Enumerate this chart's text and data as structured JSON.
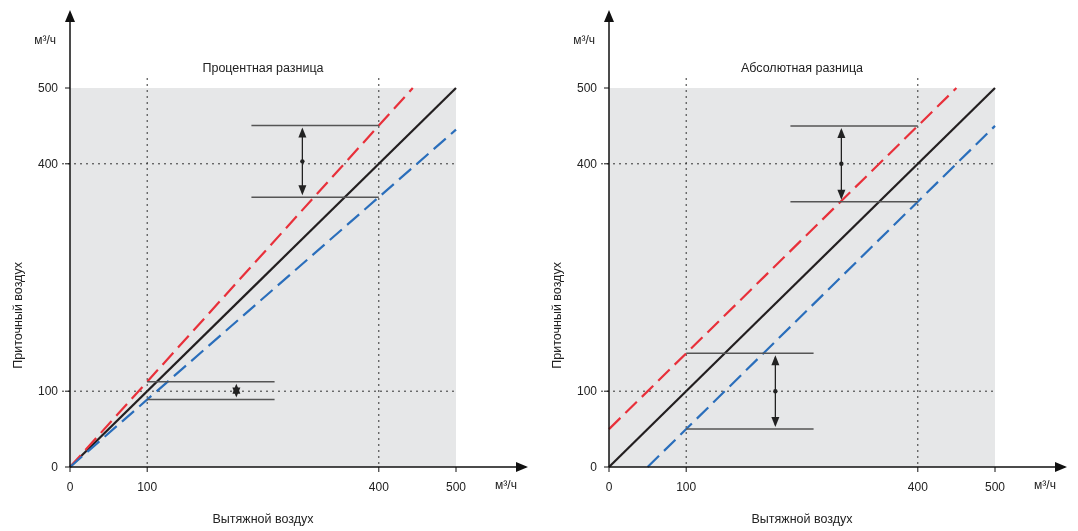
{
  "chart_data": [
    {
      "type": "line",
      "title": "Процентная разница",
      "xlabel": "Вытяжной воздух",
      "ylabel": "Приточный воздух",
      "annotations": [
        "м³/ч",
        "м³/ч"
      ],
      "xlim": [
        0,
        500
      ],
      "ylim": [
        0,
        500
      ],
      "xticks": [
        0,
        100,
        400,
        500
      ],
      "yticks": [
        0,
        100,
        400,
        500
      ],
      "grid": true,
      "series": [
        {
          "color": "#231f20",
          "line_style": "solid",
          "x": [
            0,
            500
          ],
          "values": [
            0,
            500
          ]
        },
        {
          "color": "#e8303a",
          "line_style": "dashed",
          "x": [
            0,
            444
          ],
          "values": [
            0,
            500
          ]
        },
        {
          "color": "#2a6ebb",
          "line_style": "dashed",
          "x": [
            0,
            500
          ],
          "values": [
            0,
            445
          ]
        }
      ]
    },
    {
      "type": "line",
      "title": "Абсолютная разница",
      "xlabel": "Вытяжной воздух",
      "ylabel": "Приточный воздух",
      "annotations": [
        "м³/ч",
        "м³/ч"
      ],
      "xlim": [
        0,
        500
      ],
      "ylim": [
        0,
        500
      ],
      "xticks": [
        0,
        100,
        400,
        500
      ],
      "yticks": [
        0,
        100,
        400,
        500
      ],
      "grid": true,
      "series": [
        {
          "color": "#231f20",
          "line_style": "solid",
          "x": [
            0,
            500
          ],
          "values": [
            0,
            500
          ]
        },
        {
          "color": "#e8303a",
          "line_style": "dashed",
          "x": [
            0,
            450
          ],
          "values": [
            50,
            500
          ]
        },
        {
          "color": "#2a6ebb",
          "line_style": "dashed",
          "x": [
            50,
            500
          ],
          "values": [
            0,
            450
          ]
        }
      ]
    }
  ]
}
